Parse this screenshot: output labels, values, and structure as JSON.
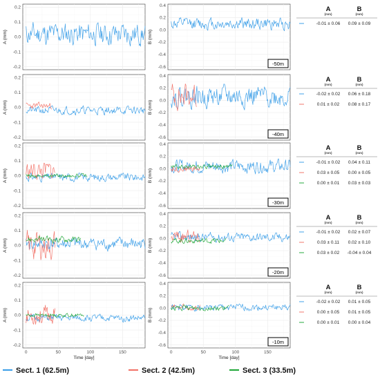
{
  "colors": {
    "sect1": "#3fa0e8",
    "sect2": "#f2756b",
    "sect3": "#25a93d"
  },
  "x_axis": {
    "label": "Time [day]",
    "ticks": [
      0,
      50,
      100,
      150
    ],
    "xlim": [
      -5,
      185
    ]
  },
  "legend": [
    {
      "name": "Sect. 1 (62.5m)",
      "color_key": "sect1"
    },
    {
      "name": "Sect. 2 (42.5m)",
      "color_key": "sect2"
    },
    {
      "name": "Sect. 3 (33.5m)",
      "color_key": "sect3"
    }
  ],
  "stats_header": {
    "a": "A",
    "b": "B",
    "unit": "(mm)"
  },
  "chart_data": {
    "type": "line",
    "title": "",
    "panel_axes": {
      "A": {
        "ylabel": "A (mm)",
        "ylim": [
          -0.22,
          0.22
        ],
        "ticks": [
          -0.2,
          -0.1,
          0.0,
          0.1,
          0.2
        ],
        "tick_labels": [
          "-0.2",
          "-0.1",
          "0.0",
          "0.1",
          "0.2"
        ]
      },
      "B": {
        "ylabel": "B (mm)",
        "ylim": [
          -0.65,
          0.42
        ],
        "ticks": [
          -0.6,
          -0.4,
          -0.2,
          0.0,
          0.2,
          0.4
        ],
        "tick_labels": [
          "-0.6",
          "-0.4",
          "-0.2",
          "0.0",
          "0.2",
          "0.4"
        ]
      }
    },
    "grid": true,
    "legend_position": "bottom",
    "rows": [
      {
        "depth": "-50m",
        "series": [
          {
            "color_key": "sect1",
            "days": [
              0,
              185
            ],
            "A": {
              "mean": 0.02,
              "amp": 0.07,
              "seed": 11
            },
            "B": {
              "mean": 0.1,
              "amp": 0.09,
              "seed": 12
            },
            "stats": {
              "A": "-0.01 ± 0.06",
              "B": "0.09 ± 0.09"
            }
          }
        ]
      },
      {
        "depth": "-40m",
        "series": [
          {
            "color_key": "sect1",
            "days": [
              0,
              185
            ],
            "A": {
              "mean": -0.02,
              "amp": 0.025,
              "seed": 21
            },
            "B": {
              "mean": 0.06,
              "amp": 0.16,
              "seed": 22
            },
            "stats": {
              "A": "-0.02 ± 0.02",
              "B": "0.06 ± 0.18"
            }
          },
          {
            "color_key": "sect2",
            "days": [
              0,
              40
            ],
            "A": {
              "mean": 0.01,
              "amp": 0.02,
              "seed": 23
            },
            "B": {
              "mean": 0.08,
              "amp": 0.2,
              "seed": 24
            },
            "stats": {
              "A": "0.01 ± 0.02",
              "B": "0.08 ± 0.17"
            }
          }
        ]
      },
      {
        "depth": "-30m",
        "series": [
          {
            "color_key": "sect1",
            "days": [
              0,
              185
            ],
            "A": {
              "mean": -0.01,
              "amp": 0.025,
              "seed": 31
            },
            "B": {
              "mean": 0.04,
              "amp": 0.1,
              "seed": 32
            },
            "stats": {
              "A": "-0.01 ± 0.02",
              "B": "0.04 ± 0.11"
            }
          },
          {
            "color_key": "sect2",
            "days": [
              0,
              45
            ],
            "A": {
              "mean": 0.03,
              "amp": 0.06,
              "seed": 33
            },
            "B": {
              "mean": 0.0,
              "amp": 0.05,
              "seed": 34
            },
            "stats": {
              "A": "0.03 ± 0.05",
              "B": "0.00 ± 0.05"
            }
          },
          {
            "color_key": "sect3",
            "days": [
              0,
              95
            ],
            "A": {
              "mean": 0.0,
              "amp": 0.012,
              "seed": 35
            },
            "B": {
              "mean": 0.03,
              "amp": 0.035,
              "seed": 36
            },
            "stats": {
              "A": "0.00 ± 0.01",
              "B": "0.03 ± 0.03"
            }
          }
        ]
      },
      {
        "depth": "-20m",
        "series": [
          {
            "color_key": "sect1",
            "days": [
              0,
              185
            ],
            "A": {
              "mean": 0.01,
              "amp": 0.04,
              "seed": 41
            },
            "B": {
              "mean": 0.02,
              "amp": 0.07,
              "seed": 42
            },
            "stats": {
              "A": "-0.01 ± 0.02",
              "B": "0.02 ± 0.07"
            }
          },
          {
            "color_key": "sect2",
            "days": [
              0,
              45
            ],
            "A": {
              "mean": 0.0,
              "amp": 0.09,
              "seed": 43
            },
            "B": {
              "mean": 0.02,
              "amp": 0.1,
              "seed": 44
            },
            "stats": {
              "A": "0.03 ± 0.11",
              "B": "0.02 ± 0.10"
            }
          },
          {
            "color_key": "sect3",
            "days": [
              0,
              85
            ],
            "A": {
              "mean": 0.04,
              "amp": 0.02,
              "seed": 45
            },
            "B": {
              "mean": -0.04,
              "amp": 0.04,
              "seed": 46
            },
            "stats": {
              "A": "0.03 ± 0.02",
              "B": "-0.04 ± 0.04"
            }
          }
        ]
      },
      {
        "depth": "-10m",
        "series": [
          {
            "color_key": "sect1",
            "days": [
              0,
              185
            ],
            "A": {
              "mean": -0.02,
              "amp": 0.022,
              "seed": 51
            },
            "B": {
              "mean": 0.01,
              "amp": 0.05,
              "seed": 52
            },
            "stats": {
              "A": "-0.02 ± 0.02",
              "B": "0.01 ± 0.05"
            }
          },
          {
            "color_key": "sect2",
            "days": [
              0,
              45
            ],
            "A": {
              "mean": 0.0,
              "amp": 0.06,
              "seed": 53
            },
            "B": {
              "mean": 0.01,
              "amp": 0.05,
              "seed": 54
            },
            "stats": {
              "A": "0.00 ± 0.05",
              "B": "0.01 ± 0.05"
            }
          },
          {
            "color_key": "sect3",
            "days": [
              0,
              90
            ],
            "A": {
              "mean": 0.0,
              "amp": 0.012,
              "seed": 55
            },
            "B": {
              "mean": 0.0,
              "amp": 0.04,
              "seed": 56
            },
            "stats": {
              "A": "0.00 ± 0.01",
              "B": "0.00 ± 0.04"
            }
          }
        ]
      }
    ]
  }
}
